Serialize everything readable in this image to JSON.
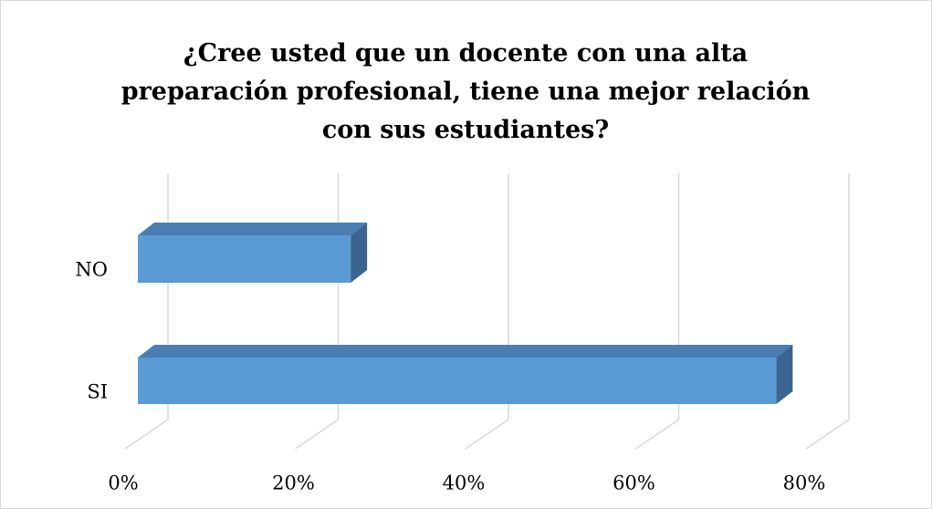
{
  "chart_data": {
    "type": "bar3d_horizontal",
    "title": "¿Cree usted que un docente con una alta preparación profesional, tiene una mejor relación con sus estudiantes?",
    "categories": [
      "NO",
      "SI"
    ],
    "values": [
      25,
      75
    ],
    "color": "#5b9bd5",
    "xlim": [
      0,
      80
    ],
    "xticks": [
      {
        "value": 0,
        "label": "0%"
      },
      {
        "value": 20,
        "label": "20%"
      },
      {
        "value": 40,
        "label": "40%"
      },
      {
        "value": 60,
        "label": "60%"
      },
      {
        "value": 80,
        "label": "80%"
      }
    ],
    "grid": true
  }
}
